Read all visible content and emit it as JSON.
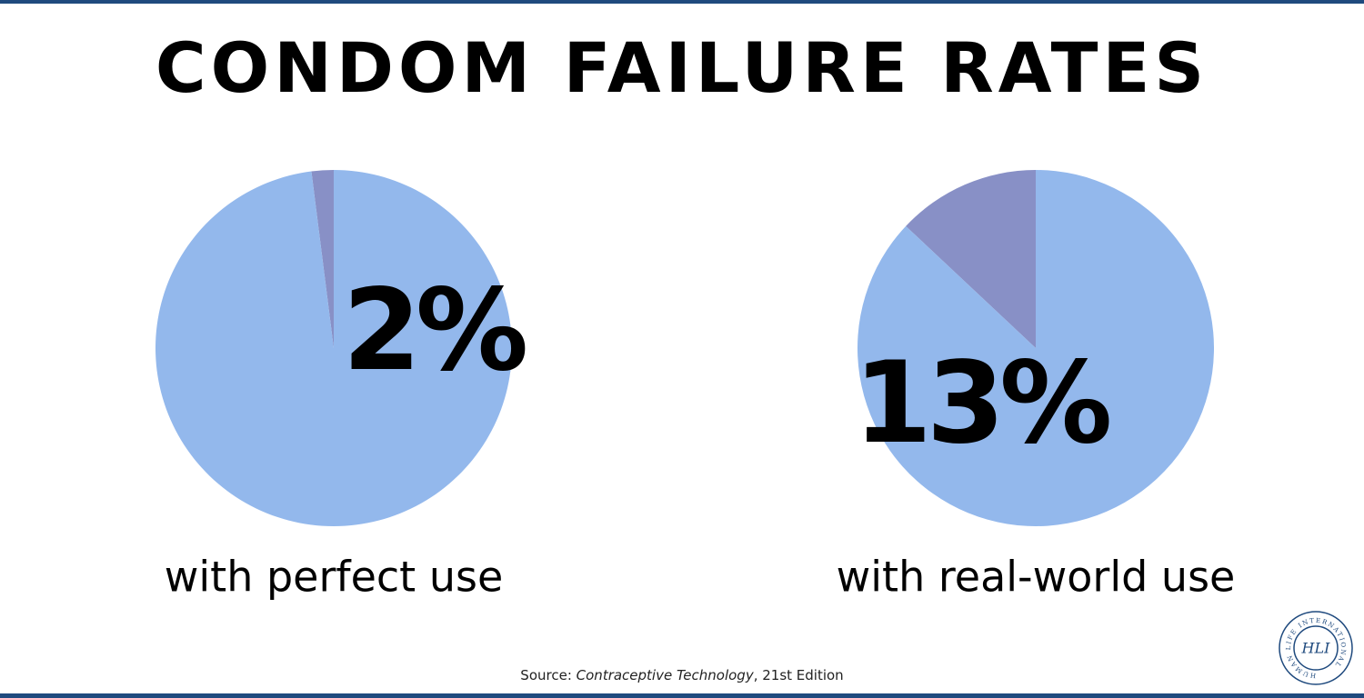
{
  "title": "CONDOM FAILURE RATES",
  "chart_data": [
    {
      "type": "pie",
      "values": [
        2,
        98
      ],
      "value_labels": [
        "2%",
        null
      ],
      "colors": [
        "#8890c6",
        "#93b8ec"
      ],
      "direction": "counterclockwise",
      "caption": "with perfect use"
    },
    {
      "type": "pie",
      "values": [
        13,
        87
      ],
      "value_labels": [
        "13%",
        null
      ],
      "colors": [
        "#8890c6",
        "#93b8ec"
      ],
      "direction": "counterclockwise",
      "caption": "with real-world use"
    }
  ],
  "source": {
    "prefix": "Source:",
    "work": "Contraceptive Technology",
    "suffix": ", 21st Edition"
  },
  "logo": {
    "ring_text": "HUMAN LIFE INTERNATIONAL",
    "initials": "HLI"
  }
}
